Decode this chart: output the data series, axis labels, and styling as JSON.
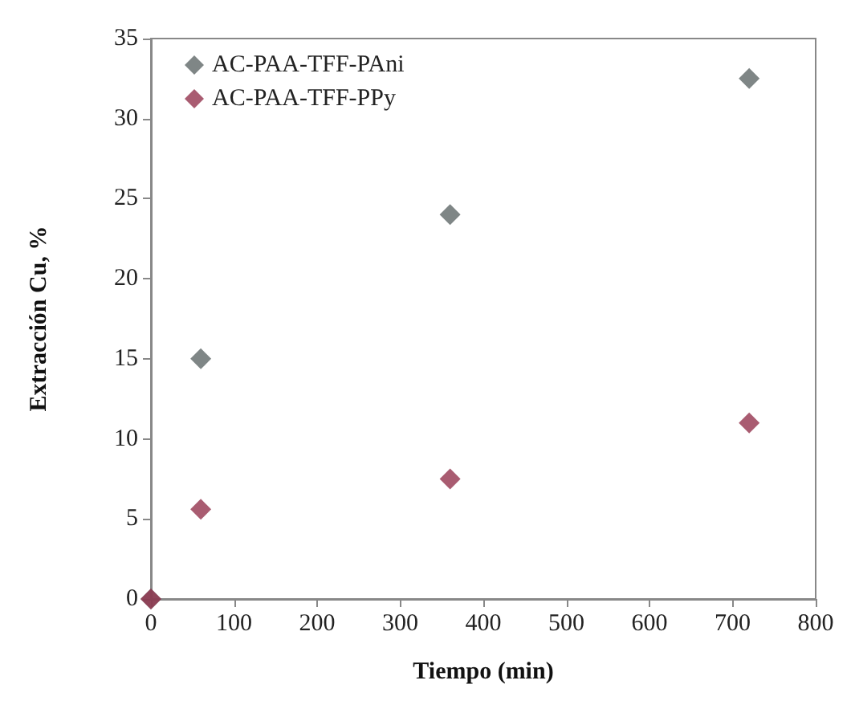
{
  "chart_data": {
    "type": "scatter",
    "xlabel": "Tiempo (min)",
    "ylabel": "Extracción Cu, %",
    "xlim": [
      0,
      800
    ],
    "xticks": [
      0,
      100,
      200,
      300,
      400,
      500,
      600,
      700,
      800
    ],
    "ylim": [
      0,
      35
    ],
    "yticks": [
      0,
      5,
      10,
      15,
      20,
      25,
      30,
      35
    ],
    "grid": false,
    "legend": "top left",
    "marker": "diamond",
    "series": [
      {
        "name": "AC-PAA-TFF-PAni",
        "color": "#5f6868",
        "x": [
          0,
          60,
          360,
          720
        ],
        "values": [
          0,
          15,
          24,
          32.5
        ]
      },
      {
        "name": "AC-PAA-TFF-PPy",
        "color": "#94334d",
        "x": [
          0,
          60,
          360,
          720
        ],
        "values": [
          0,
          5.6,
          7.5,
          11
        ]
      }
    ]
  }
}
